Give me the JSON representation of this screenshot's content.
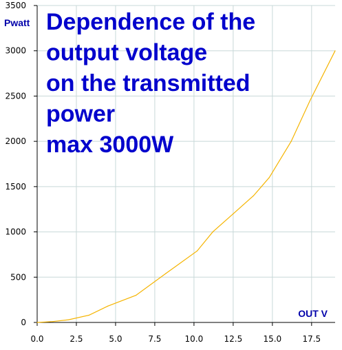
{
  "chart_data": {
    "type": "line",
    "title_lines": [
      "Dependence of the",
      "output voltage",
      "on the transmitted",
      "power",
      "max 3000W"
    ],
    "ylabel": "Pwatt",
    "xlabel": "OUT V",
    "xlim": [
      0,
      19
    ],
    "ylim": [
      0,
      3500
    ],
    "x_ticks": [
      "0.0",
      "2.5",
      "5.0",
      "7.5",
      "10.0",
      "12.5",
      "15.0",
      "17.5"
    ],
    "y_ticks": [
      "0",
      "500",
      "1000",
      "1500",
      "2000",
      "2500",
      "3000",
      "3500"
    ],
    "grid": true,
    "colors": {
      "line": "#f5b400",
      "grid": "#c8d8d8",
      "axis": "#000000",
      "title": "#0000cc",
      "axis_label": "#0000aa"
    },
    "series": [
      {
        "x": [
          0,
          1,
          2,
          3.3,
          4.5,
          6.3,
          8.2,
          10.2,
          11.2,
          12.5,
          13.8,
          14.8,
          16.2,
          17.4,
          19
        ],
        "y": [
          0,
          10,
          30,
          80,
          180,
          300,
          540,
          790,
          1000,
          1200,
          1400,
          1600,
          2000,
          2450,
          3000
        ]
      }
    ]
  }
}
